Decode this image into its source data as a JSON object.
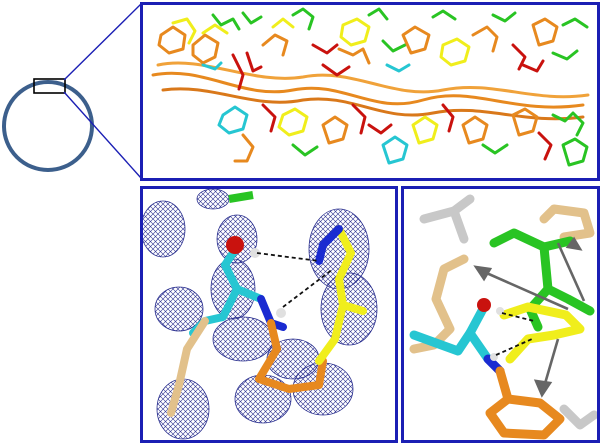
{
  "figure": {
    "overview_ring_color": "#3c5f8c",
    "frame_color": "#1b1fb4",
    "zoom_line_color": "#1b1fb4",
    "colors": {
      "orange": "#e7891f",
      "yellow": "#f0ee1c",
      "green": "#29c423",
      "red": "#c9120e",
      "cyan": "#26c6d2",
      "tan": "#e2c18b",
      "blue": "#1a2bd1",
      "grey": "#c8c8c8",
      "mesh": "#2a2f8f"
    }
  }
}
